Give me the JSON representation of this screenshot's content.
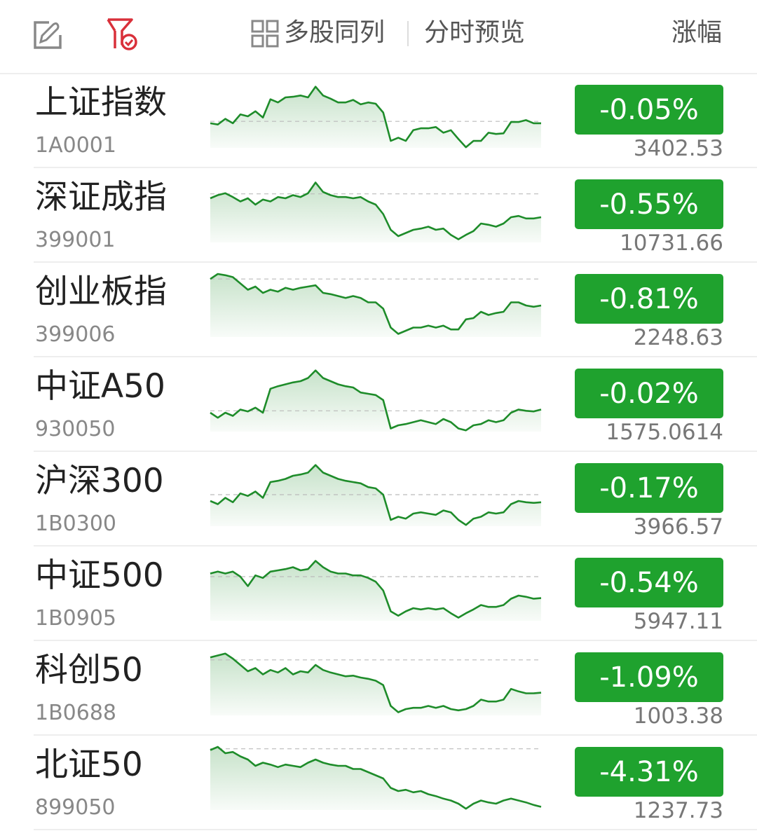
{
  "header": {
    "edit_icon": "edit-icon",
    "filter_icon": "filter-check-icon",
    "multi_label": "多股同列",
    "preview_label": "分时预览",
    "sort_label": "涨幅"
  },
  "colors": {
    "down": "#1fa22e",
    "line": "#1e8c2a",
    "accent_red": "#d9303a"
  },
  "rows": [
    {
      "name": "上证指数",
      "code": "1A0001",
      "change": "-0.05%",
      "price": "3402.53",
      "prev_level": 42,
      "spark": [
        39,
        37,
        46,
        39,
        53,
        50,
        58,
        48,
        77,
        72,
        80,
        81,
        83,
        80,
        97,
        83,
        78,
        72,
        72,
        76,
        69,
        72,
        70,
        56,
        11,
        16,
        11,
        28,
        31,
        31,
        33,
        24,
        28,
        14,
        1,
        11,
        11,
        24,
        22,
        23,
        41,
        41,
        44,
        39,
        39
      ]
    },
    {
      "name": "深证成指",
      "code": "399001",
      "change": "-0.55%",
      "price": "10731.66",
      "prev_level": 77,
      "spark": [
        70,
        75,
        78,
        72,
        65,
        70,
        60,
        68,
        65,
        72,
        70,
        75,
        72,
        78,
        95,
        80,
        75,
        72,
        72,
        70,
        72,
        65,
        60,
        45,
        20,
        10,
        15,
        20,
        22,
        25,
        20,
        22,
        12,
        5,
        12,
        18,
        30,
        28,
        25,
        30,
        40,
        42,
        38,
        38,
        40
      ]
    },
    {
      "name": "创业板指",
      "code": "399006",
      "change": "-0.81%",
      "price": "2248.63",
      "prev_level": 92,
      "spark": [
        92,
        100,
        98,
        95,
        85,
        75,
        80,
        70,
        75,
        72,
        78,
        75,
        78,
        80,
        82,
        70,
        68,
        65,
        62,
        65,
        62,
        55,
        55,
        45,
        15,
        5,
        10,
        15,
        15,
        18,
        15,
        18,
        12,
        12,
        28,
        30,
        40,
        35,
        38,
        40,
        55,
        55,
        50,
        48,
        50
      ]
    },
    {
      "name": "中证A50",
      "code": "930050",
      "change": "-0.02%",
      "price": "1575.0614",
      "prev_level": 33,
      "spark": [
        30,
        22,
        30,
        25,
        35,
        32,
        38,
        30,
        68,
        72,
        75,
        78,
        80,
        85,
        97,
        85,
        80,
        75,
        72,
        70,
        62,
        60,
        58,
        50,
        5,
        10,
        12,
        15,
        18,
        15,
        12,
        20,
        15,
        5,
        2,
        10,
        12,
        18,
        15,
        18,
        30,
        35,
        33,
        32,
        35
      ]
    },
    {
      "name": "沪深300",
      "code": "1B0300",
      "change": "-0.17%",
      "price": "3966.57",
      "prev_level": 50,
      "spark": [
        40,
        35,
        45,
        38,
        52,
        48,
        55,
        45,
        70,
        72,
        75,
        80,
        82,
        85,
        97,
        85,
        80,
        75,
        72,
        70,
        68,
        62,
        60,
        50,
        10,
        15,
        12,
        20,
        22,
        20,
        18,
        25,
        22,
        10,
        2,
        12,
        15,
        22,
        20,
        22,
        35,
        40,
        38,
        37,
        38
      ]
    },
    {
      "name": "中证500",
      "code": "1B0905",
      "change": "-0.54%",
      "price": "5947.11",
      "prev_level": 70,
      "spark": [
        75,
        78,
        75,
        78,
        70,
        55,
        72,
        68,
        78,
        80,
        82,
        85,
        80,
        82,
        95,
        85,
        78,
        75,
        75,
        72,
        72,
        68,
        62,
        48,
        15,
        8,
        15,
        20,
        18,
        20,
        18,
        20,
        12,
        5,
        12,
        18,
        25,
        22,
        22,
        25,
        35,
        40,
        38,
        35,
        36
      ]
    },
    {
      "name": "科创50",
      "code": "1B0688",
      "change": "-1.09%",
      "price": "1003.38",
      "prev_level": 88,
      "spark": [
        92,
        95,
        98,
        90,
        80,
        70,
        75,
        65,
        72,
        68,
        75,
        65,
        70,
        68,
        80,
        72,
        68,
        65,
        62,
        63,
        60,
        58,
        55,
        48,
        15,
        5,
        10,
        12,
        12,
        15,
        12,
        15,
        10,
        8,
        10,
        15,
        25,
        22,
        22,
        25,
        42,
        38,
        35,
        35,
        36
      ]
    },
    {
      "name": "北证50",
      "code": "899050",
      "change": "-4.31%",
      "price": "1237.73",
      "prev_level": 97,
      "spark": [
        95,
        100,
        90,
        92,
        85,
        80,
        70,
        75,
        72,
        68,
        72,
        70,
        68,
        75,
        80,
        75,
        72,
        70,
        70,
        65,
        65,
        60,
        55,
        50,
        35,
        30,
        32,
        28,
        30,
        25,
        22,
        18,
        15,
        10,
        2,
        10,
        15,
        12,
        10,
        15,
        18,
        15,
        12,
        8,
        5
      ]
    }
  ]
}
